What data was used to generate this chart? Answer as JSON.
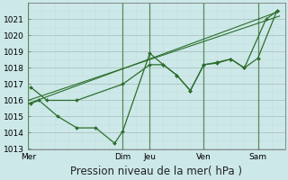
{
  "bg_color": "#cce8e8",
  "grid_color": "#b8d8d8",
  "grid_major_color": "#aacccc",
  "line_color": "#2d6e2d",
  "marker_color": "#2d6e2d",
  "ylim": [
    1013,
    1022
  ],
  "yticks": [
    1013,
    1014,
    1015,
    1016,
    1017,
    1018,
    1019,
    1020,
    1021
  ],
  "xlabel": "Pression niveau de la mer( hPa )",
  "xlabel_fontsize": 8.5,
  "tick_fontsize": 6.5,
  "xtick_labels": [
    "Mer",
    "Dim",
    "Jeu",
    "Ven",
    "Sam"
  ],
  "xtick_positions": [
    0,
    3.5,
    4.5,
    6.5,
    8.5
  ],
  "xlim": [
    0,
    9.5
  ],
  "vline_color": "#5a8a5a",
  "vlines": [
    0.0,
    3.5,
    4.5,
    6.5,
    8.5
  ],
  "series": [
    {
      "x": [
        0,
        9.3
      ],
      "y": [
        1015.8,
        1021.5
      ],
      "has_markers": false,
      "lw": 0.8
    },
    {
      "x": [
        0,
        9.3
      ],
      "y": [
        1016.0,
        1021.2
      ],
      "has_markers": false,
      "lw": 0.8
    },
    {
      "x": [
        0.1,
        0.4,
        1.1,
        1.8,
        2.5,
        3.2,
        3.5,
        4.5,
        5.0,
        5.5,
        6.0,
        6.5,
        7.0,
        7.5,
        8.0,
        8.8,
        9.2
      ],
      "y": [
        1015.8,
        1016.0,
        1015.0,
        1014.3,
        1014.3,
        1013.35,
        1014.1,
        1018.9,
        1018.2,
        1017.55,
        1016.6,
        1018.2,
        1018.3,
        1018.55,
        1018.0,
        1021.0,
        1021.5
      ],
      "has_markers": true,
      "lw": 0.9
    },
    {
      "x": [
        0.1,
        0.7,
        1.8,
        3.5,
        4.5,
        5.0,
        5.5,
        6.0,
        6.5,
        7.0,
        7.5,
        8.0,
        8.5,
        9.2
      ],
      "y": [
        1016.8,
        1016.0,
        1016.0,
        1017.0,
        1018.2,
        1018.2,
        1017.55,
        1016.6,
        1018.2,
        1018.35,
        1018.55,
        1018.0,
        1018.6,
        1021.5
      ],
      "has_markers": true,
      "lw": 0.9
    }
  ]
}
